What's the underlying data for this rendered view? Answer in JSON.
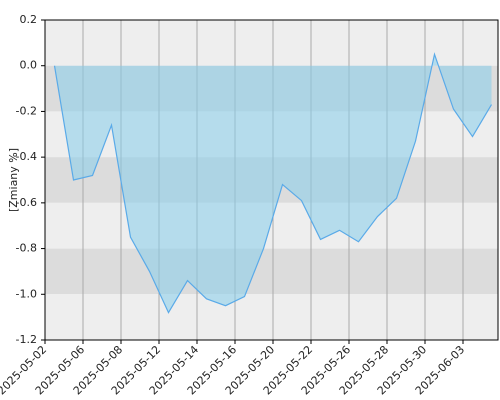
{
  "chart_data": {
    "type": "area",
    "y_label": "[Zmiany %]",
    "categories": [
      "2025-05-02",
      null,
      "2025-05-06",
      null,
      "2025-05-08",
      null,
      "2025-05-12",
      null,
      "2025-05-14",
      null,
      "2025-05-16",
      null,
      "2025-05-20",
      null,
      "2025-05-22",
      null,
      "2025-05-26",
      null,
      "2025-05-28",
      null,
      "2025-05-30",
      null,
      "2025-06-03",
      null
    ],
    "values": [
      0,
      -0.5,
      -0.48,
      -0.26,
      -0.75,
      -0.9,
      -1.08,
      -0.94,
      -1.02,
      -1.05,
      -1.01,
      -0.8,
      -0.52,
      -0.59,
      -0.76,
      -0.72,
      -0.77,
      -0.66,
      -0.58,
      -0.33,
      0.05,
      -0.19,
      -0.31,
      -0.17
    ],
    "color": "#5aaae8",
    "ylim": [
      -1.2,
      0.2
    ],
    "yticks": [
      0.2,
      {
        "value": 0,
        "label": "0.0"
      },
      -0.2,
      -0.4,
      -0.6,
      -0.8,
      {
        "value": -1,
        "label": "-1.0"
      },
      -1.2
    ],
    "grid": true
  }
}
